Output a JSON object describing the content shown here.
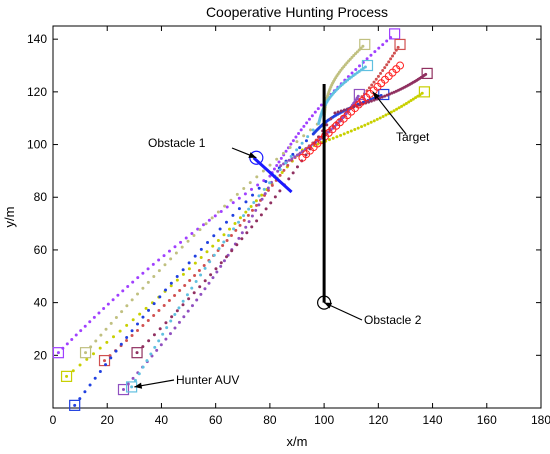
{
  "chart_data": {
    "type": "scatter",
    "title": "Cooperative Hunting Process",
    "xlabel": "x/m",
    "ylabel": "y/m",
    "xlim": [
      0,
      180
    ],
    "ylim": [
      0,
      145
    ],
    "x_ticks": [
      0,
      20,
      40,
      60,
      80,
      100,
      120,
      140,
      160,
      180
    ],
    "y_ticks": [
      20,
      40,
      60,
      80,
      100,
      120,
      140
    ],
    "grid": false,
    "hunters": [
      {
        "color": "#a040ff",
        "start": [
          2,
          21
        ],
        "end": [
          126,
          142
        ]
      },
      {
        "color": "#c8d000",
        "start": [
          5,
          12
        ],
        "end": [
          137,
          120
        ]
      },
      {
        "color": "#c0c080",
        "start": [
          12,
          21
        ],
        "end": [
          115,
          138
        ]
      },
      {
        "color": "#d05050",
        "start": [
          19,
          18
        ],
        "end": [
          128,
          138
        ]
      },
      {
        "color": "#2040e0",
        "start": [
          8,
          1
        ],
        "end": [
          122,
          119
        ]
      },
      {
        "color": "#9050c0",
        "start": [
          26,
          7
        ],
        "end": [
          113,
          119
        ]
      },
      {
        "color": "#60c0e0",
        "start": [
          29,
          8
        ],
        "end": [
          116,
          130
        ]
      },
      {
        "color": "#903060",
        "start": [
          31,
          21
        ],
        "end": [
          138,
          127
        ]
      }
    ],
    "target": {
      "color": "#ff2020",
      "start": [
        92,
        95
      ],
      "end": [
        128,
        130
      ]
    },
    "obstacles": [
      {
        "label": "Obstacle 1",
        "center": [
          75,
          95
        ],
        "line": [
          [
            74,
            95
          ],
          [
            88,
            82
          ]
        ]
      },
      {
        "label": "Obstacle 2",
        "center": [
          100,
          40
        ],
        "line": [
          [
            100,
            40
          ],
          [
            100,
            123
          ]
        ]
      }
    ],
    "annotations": [
      {
        "text": "Obstacle 1",
        "points_to": [
          75,
          95
        ]
      },
      {
        "text": "Target",
        "points_to": [
          118,
          120
        ]
      },
      {
        "text": "Obstacle 2",
        "points_to": [
          100,
          40
        ]
      },
      {
        "text": "Hunter AUV",
        "points_to": [
          30,
          8
        ]
      }
    ]
  }
}
